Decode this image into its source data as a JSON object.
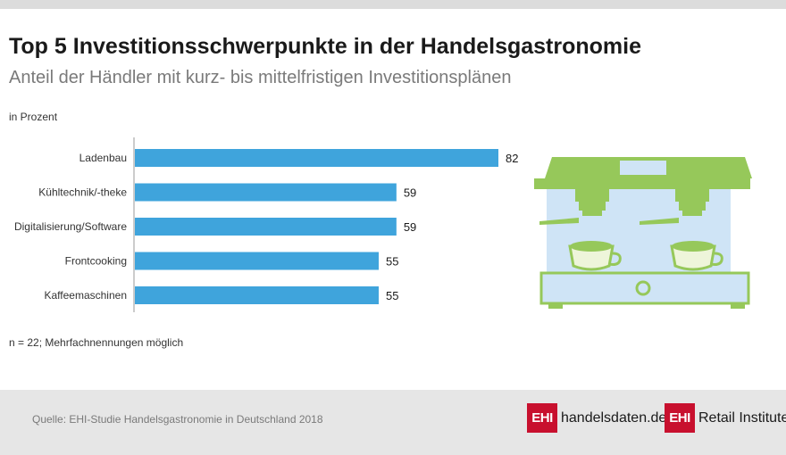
{
  "title": "Top 5 Investitionsschwerpunkte in der Handelsgastronomie",
  "subtitle": "Anteil der Händler mit kurz- bis mittelfristigen Investitionsplänen",
  "unit_label": "in Prozent",
  "note": "n = 22; Mehrfachnennungen möglich",
  "source": "Quelle: EHI-Studie Handelsgastronomie in Deutschland 2018",
  "logos": {
    "logo1_mark": "EHI",
    "logo1_text": "handelsdaten.de",
    "logo2_mark": "EHI",
    "logo2_text": "Retail Institute",
    "logo2_reg": "®"
  },
  "colors": {
    "bar": "#3fa4dc",
    "machine_green": "#96c85a",
    "machine_blue": "#cfe4f6"
  },
  "illustration": "coffee-machine",
  "chart_data": {
    "type": "bar",
    "orientation": "horizontal",
    "categories": [
      "Ladenbau",
      "Kühltechnik/-theke",
      "Digitalisierung/Software",
      "Frontcooking",
      "Kaffeemaschinen"
    ],
    "values": [
      82,
      59,
      59,
      55,
      55
    ],
    "xlim": [
      0,
      82
    ],
    "grid": false,
    "data_labels": true
  }
}
